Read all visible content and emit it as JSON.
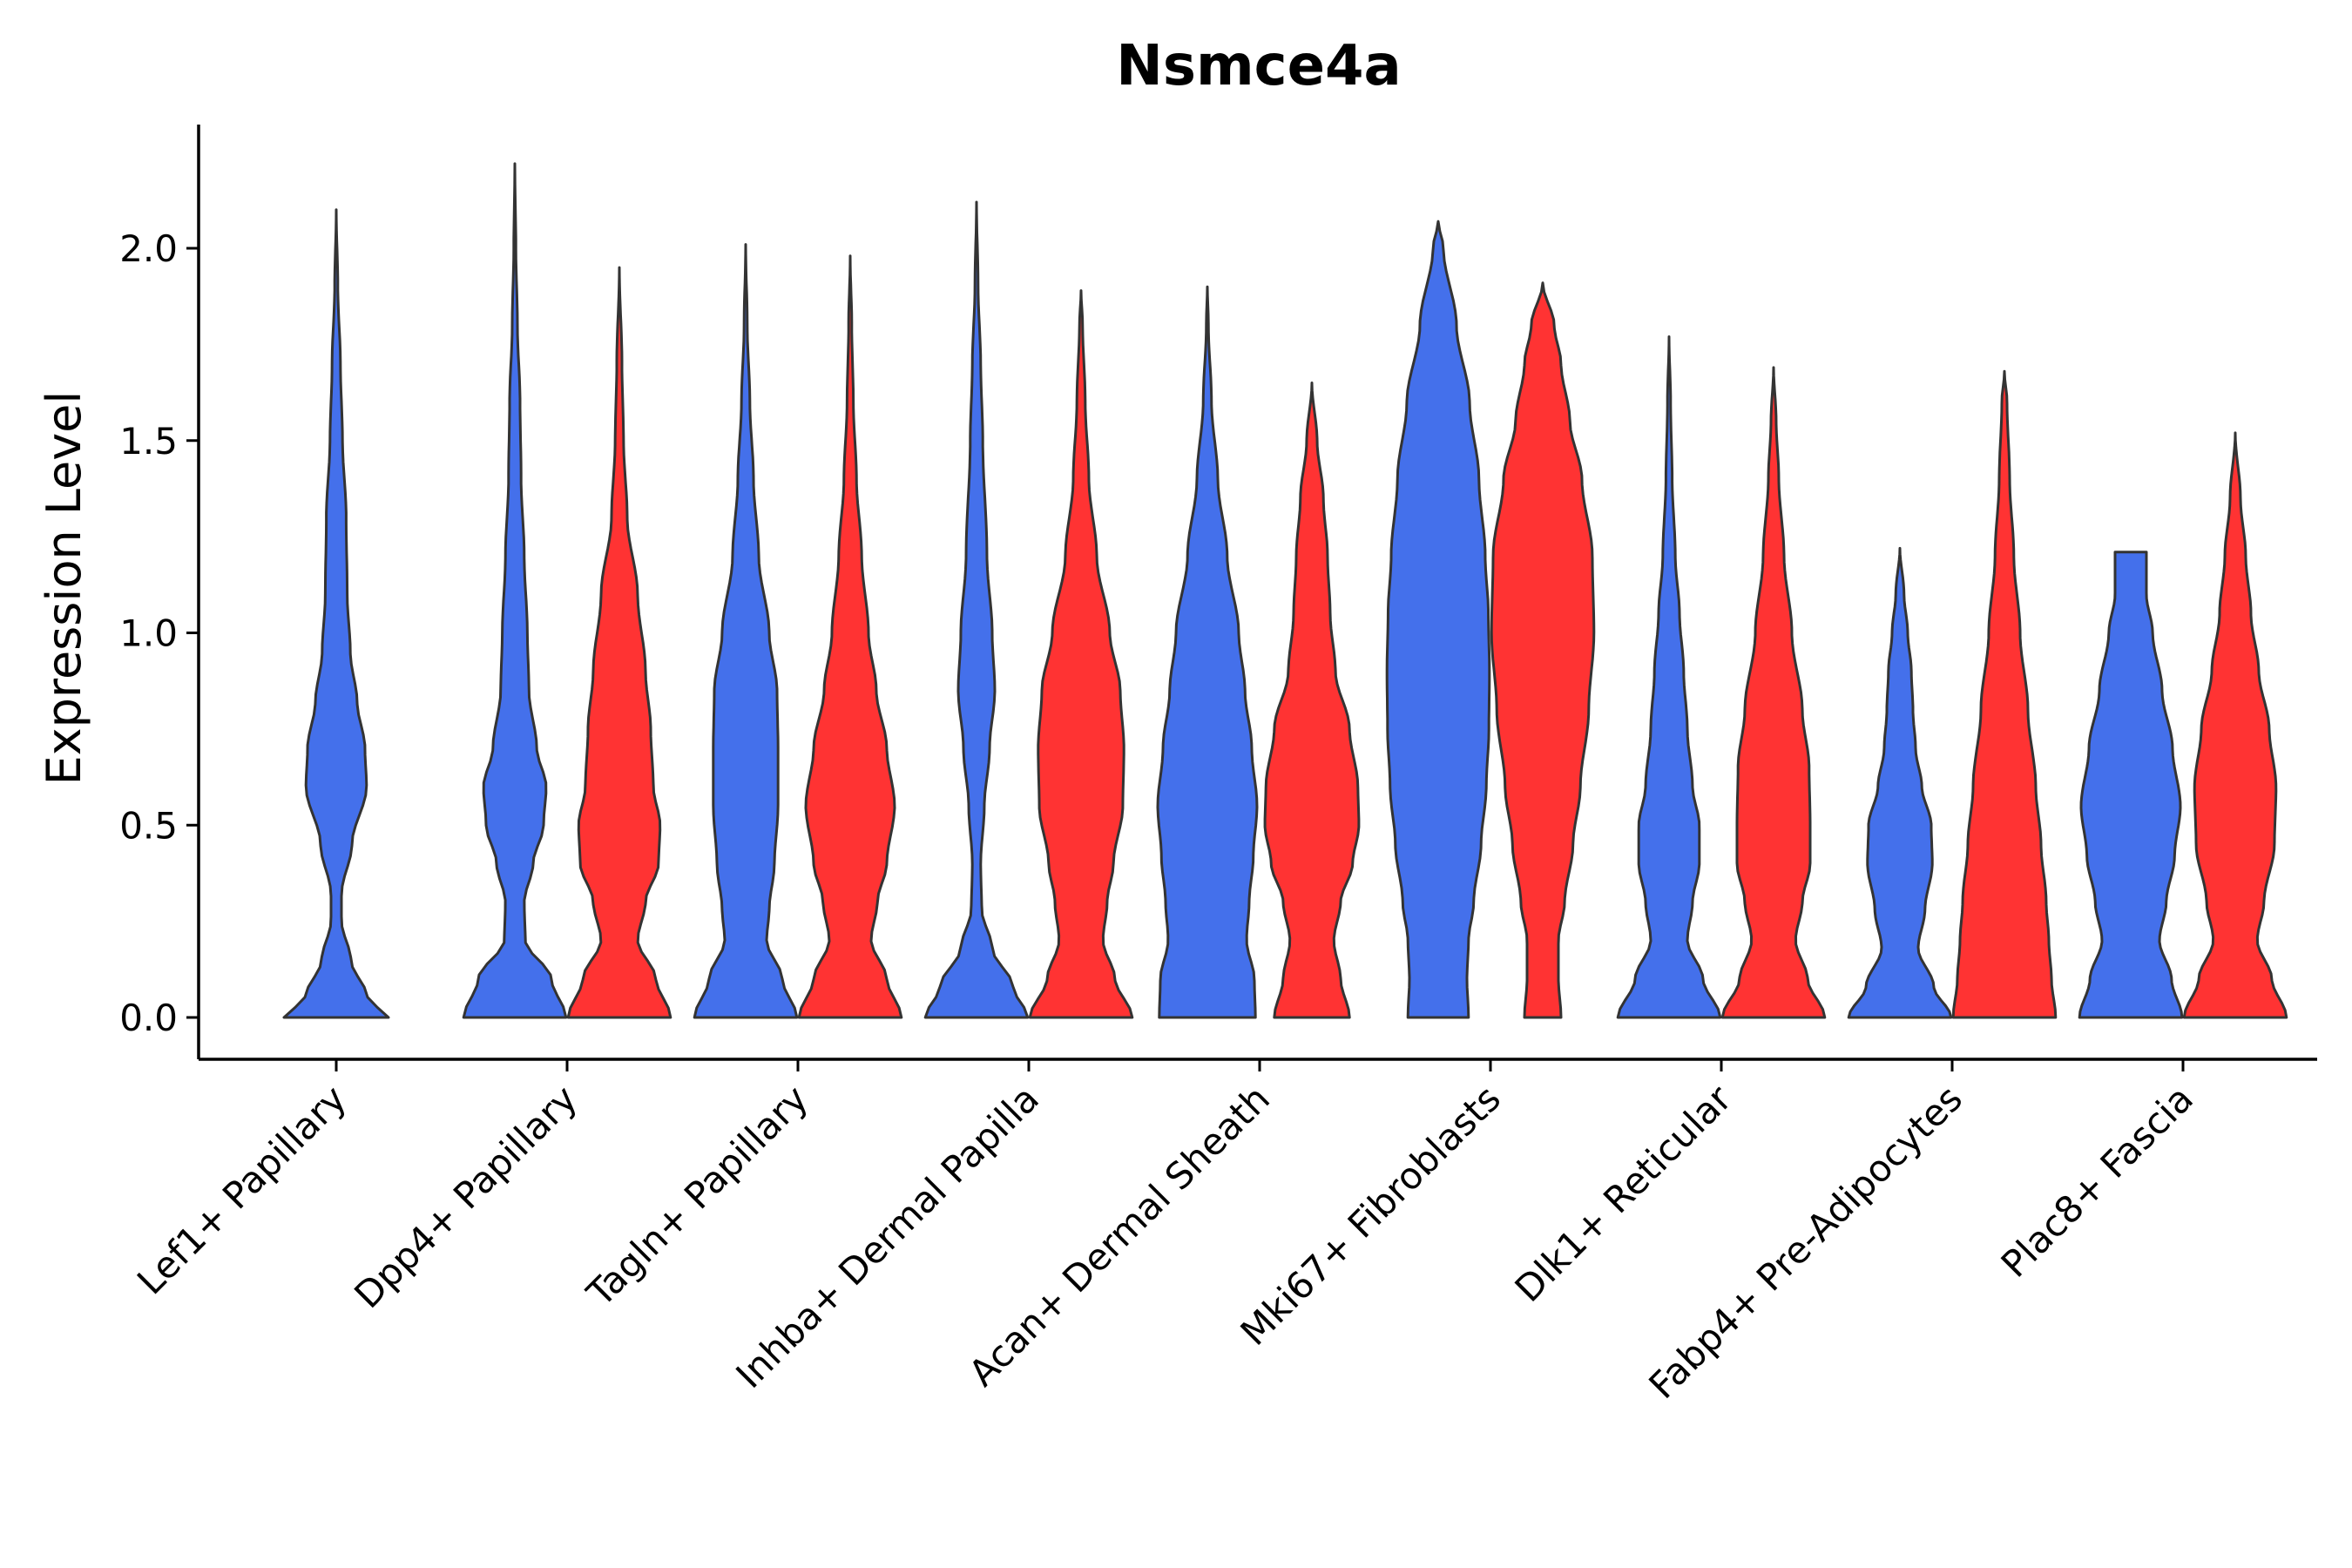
{
  "chart_data": {
    "type": "violin",
    "title": "Nsmce4a",
    "xlabel": "",
    "ylabel": "Expression Level",
    "ylim": [
      -0.11,
      2.33
    ],
    "yticks": [
      0.0,
      0.5,
      1.0,
      1.5,
      2.0
    ],
    "ytick_labels": [
      "0.0",
      "0.5",
      "1.0",
      "1.5",
      "2.0"
    ],
    "categories": [
      "Lef1+ Papillary",
      "Dpp4+ Papillary",
      "Tagln+ Papillary",
      "Inhba+ Dermal Papilla",
      "Acan+ Dermal Sheath",
      "Mki67+ Fibroblasts",
      "Dlk1+ Reticular",
      "Fabp4+ Pre-Adipocytes",
      "Plac8+ Fascia"
    ],
    "series": [
      {
        "name": "group1",
        "color": "#4470EB",
        "violins": [
          {
            "max": 2.1,
            "profile": [
              [
                0.0,
                1.0
              ],
              [
                0.05,
                0.6
              ],
              [
                0.15,
                0.28
              ],
              [
                0.25,
                0.1
              ],
              [
                0.32,
                0.1
              ],
              [
                0.45,
                0.3
              ],
              [
                0.6,
                0.58
              ],
              [
                0.7,
                0.55
              ],
              [
                0.82,
                0.4
              ],
              [
                0.95,
                0.27
              ],
              [
                1.1,
                0.21
              ],
              [
                1.3,
                0.19
              ],
              [
                1.5,
                0.12
              ],
              [
                1.7,
                0.08
              ],
              [
                1.9,
                0.03
              ],
              [
                2.1,
                0.0
              ]
            ]
          },
          {
            "max": 2.22,
            "profile": [
              [
                0.0,
                0.98
              ],
              [
                0.1,
                0.7
              ],
              [
                0.2,
                0.2
              ],
              [
                0.3,
                0.18
              ],
              [
                0.4,
                0.35
              ],
              [
                0.5,
                0.55
              ],
              [
                0.6,
                0.6
              ],
              [
                0.7,
                0.42
              ],
              [
                0.85,
                0.27
              ],
              [
                1.0,
                0.24
              ],
              [
                1.2,
                0.18
              ],
              [
                1.4,
                0.12
              ],
              [
                1.6,
                0.1
              ],
              [
                1.8,
                0.05
              ],
              [
                2.0,
                0.02
              ],
              [
                2.22,
                0.0
              ]
            ]
          },
          {
            "max": 2.01,
            "profile": [
              [
                0.0,
                0.98
              ],
              [
                0.1,
                0.7
              ],
              [
                0.2,
                0.4
              ],
              [
                0.28,
                0.45
              ],
              [
                0.4,
                0.55
              ],
              [
                0.55,
                0.62
              ],
              [
                0.7,
                0.62
              ],
              [
                0.85,
                0.6
              ],
              [
                1.0,
                0.45
              ],
              [
                1.2,
                0.25
              ],
              [
                1.4,
                0.15
              ],
              [
                1.6,
                0.08
              ],
              [
                1.8,
                0.03
              ],
              [
                2.01,
                0.0
              ]
            ]
          },
          {
            "max": 2.12,
            "profile": [
              [
                0.0,
                0.98
              ],
              [
                0.08,
                0.7
              ],
              [
                0.18,
                0.3
              ],
              [
                0.28,
                0.1
              ],
              [
                0.4,
                0.08
              ],
              [
                0.55,
                0.15
              ],
              [
                0.7,
                0.25
              ],
              [
                0.85,
                0.35
              ],
              [
                1.0,
                0.3
              ],
              [
                1.2,
                0.2
              ],
              [
                1.5,
                0.12
              ],
              [
                1.7,
                0.08
              ],
              [
                1.9,
                0.03
              ],
              [
                2.12,
                0.0
              ]
            ]
          },
          {
            "max": 1.9,
            "profile": [
              [
                0.0,
                0.92
              ],
              [
                0.1,
                0.9
              ],
              [
                0.2,
                0.75
              ],
              [
                0.3,
                0.8
              ],
              [
                0.42,
                0.88
              ],
              [
                0.55,
                0.95
              ],
              [
                0.7,
                0.85
              ],
              [
                0.85,
                0.72
              ],
              [
                1.0,
                0.6
              ],
              [
                1.2,
                0.38
              ],
              [
                1.4,
                0.2
              ],
              [
                1.6,
                0.08
              ],
              [
                1.8,
                0.02
              ],
              [
                1.9,
                0.0
              ]
            ]
          },
          {
            "max": 2.07,
            "profile": [
              [
                0.0,
                0.58
              ],
              [
                0.1,
                0.55
              ],
              [
                0.2,
                0.58
              ],
              [
                0.3,
                0.68
              ],
              [
                0.45,
                0.82
              ],
              [
                0.6,
                0.92
              ],
              [
                0.75,
                0.97
              ],
              [
                0.9,
                0.98
              ],
              [
                1.05,
                0.96
              ],
              [
                1.2,
                0.9
              ],
              [
                1.4,
                0.78
              ],
              [
                1.6,
                0.6
              ],
              [
                1.8,
                0.35
              ],
              [
                2.0,
                0.1
              ],
              [
                2.07,
                0.0
              ]
            ]
          },
          {
            "max": 1.77,
            "profile": [
              [
                0.0,
                0.98
              ],
              [
                0.1,
                0.65
              ],
              [
                0.2,
                0.35
              ],
              [
                0.3,
                0.45
              ],
              [
                0.4,
                0.58
              ],
              [
                0.5,
                0.58
              ],
              [
                0.6,
                0.45
              ],
              [
                0.75,
                0.35
              ],
              [
                0.9,
                0.28
              ],
              [
                1.05,
                0.2
              ],
              [
                1.2,
                0.12
              ],
              [
                1.4,
                0.06
              ],
              [
                1.6,
                0.03
              ],
              [
                1.77,
                0.0
              ]
            ]
          },
          {
            "max": 1.22,
            "profile": [
              [
                0.0,
                0.98
              ],
              [
                0.08,
                0.65
              ],
              [
                0.18,
                0.35
              ],
              [
                0.28,
                0.48
              ],
              [
                0.4,
                0.62
              ],
              [
                0.5,
                0.6
              ],
              [
                0.6,
                0.42
              ],
              [
                0.7,
                0.3
              ],
              [
                0.8,
                0.25
              ],
              [
                0.9,
                0.22
              ],
              [
                1.0,
                0.15
              ],
              [
                1.1,
                0.08
              ],
              [
                1.22,
                0.0
              ]
            ]
          },
          {
            "max": 1.21,
            "profile": [
              [
                0.0,
                0.98
              ],
              [
                0.1,
                0.78
              ],
              [
                0.2,
                0.55
              ],
              [
                0.3,
                0.68
              ],
              [
                0.42,
                0.84
              ],
              [
                0.55,
                0.95
              ],
              [
                0.7,
                0.8
              ],
              [
                0.85,
                0.6
              ],
              [
                1.0,
                0.42
              ],
              [
                1.1,
                0.3
              ],
              [
                1.21,
                0.3
              ]
            ]
          }
        ]
      },
      {
        "name": "group2",
        "color": "#FF3333",
        "violins": [
          null,
          {
            "max": 1.95,
            "profile": [
              [
                0.0,
                0.98
              ],
              [
                0.1,
                0.7
              ],
              [
                0.2,
                0.35
              ],
              [
                0.3,
                0.5
              ],
              [
                0.4,
                0.75
              ],
              [
                0.5,
                0.78
              ],
              [
                0.6,
                0.65
              ],
              [
                0.75,
                0.6
              ],
              [
                0.9,
                0.5
              ],
              [
                1.1,
                0.35
              ],
              [
                1.3,
                0.15
              ],
              [
                1.5,
                0.08
              ],
              [
                1.7,
                0.05
              ],
              [
                1.95,
                0.0
              ]
            ]
          },
          {
            "max": 1.98,
            "profile": [
              [
                0.0,
                0.98
              ],
              [
                0.1,
                0.7
              ],
              [
                0.2,
                0.4
              ],
              [
                0.3,
                0.52
              ],
              [
                0.4,
                0.7
              ],
              [
                0.55,
                0.85
              ],
              [
                0.7,
                0.7
              ],
              [
                0.85,
                0.5
              ],
              [
                1.0,
                0.35
              ],
              [
                1.2,
                0.22
              ],
              [
                1.4,
                0.12
              ],
              [
                1.6,
                0.06
              ],
              [
                1.8,
                0.03
              ],
              [
                1.98,
                0.0
              ]
            ]
          },
          {
            "max": 1.89,
            "profile": [
              [
                0.0,
                0.98
              ],
              [
                0.1,
                0.65
              ],
              [
                0.2,
                0.42
              ],
              [
                0.3,
                0.5
              ],
              [
                0.4,
                0.62
              ],
              [
                0.55,
                0.8
              ],
              [
                0.7,
                0.82
              ],
              [
                0.85,
                0.75
              ],
              [
                1.0,
                0.55
              ],
              [
                1.2,
                0.3
              ],
              [
                1.4,
                0.15
              ],
              [
                1.6,
                0.08
              ],
              [
                1.8,
                0.03
              ],
              [
                1.89,
                0.0
              ]
            ]
          },
          {
            "max": 1.65,
            "profile": [
              [
                0.0,
                0.72
              ],
              [
                0.1,
                0.55
              ],
              [
                0.2,
                0.42
              ],
              [
                0.3,
                0.55
              ],
              [
                0.4,
                0.78
              ],
              [
                0.5,
                0.9
              ],
              [
                0.6,
                0.88
              ],
              [
                0.75,
                0.72
              ],
              [
                0.9,
                0.45
              ],
              [
                1.05,
                0.35
              ],
              [
                1.2,
                0.3
              ],
              [
                1.35,
                0.22
              ],
              [
                1.5,
                0.1
              ],
              [
                1.65,
                0.0
              ]
            ]
          },
          {
            "max": 1.91,
            "profile": [
              [
                0.0,
                0.35
              ],
              [
                0.1,
                0.3
              ],
              [
                0.2,
                0.3
              ],
              [
                0.3,
                0.42
              ],
              [
                0.45,
                0.58
              ],
              [
                0.6,
                0.72
              ],
              [
                0.8,
                0.88
              ],
              [
                1.0,
                0.98
              ],
              [
                1.2,
                0.95
              ],
              [
                1.4,
                0.75
              ],
              [
                1.55,
                0.52
              ],
              [
                1.7,
                0.35
              ],
              [
                1.8,
                0.22
              ],
              [
                1.91,
                0.0
              ]
            ]
          },
          {
            "max": 1.69,
            "profile": [
              [
                0.0,
                0.98
              ],
              [
                0.1,
                0.65
              ],
              [
                0.2,
                0.42
              ],
              [
                0.3,
                0.55
              ],
              [
                0.4,
                0.7
              ],
              [
                0.5,
                0.7
              ],
              [
                0.65,
                0.68
              ],
              [
                0.8,
                0.55
              ],
              [
                1.0,
                0.35
              ],
              [
                1.2,
                0.2
              ],
              [
                1.4,
                0.1
              ],
              [
                1.55,
                0.05
              ],
              [
                1.69,
                0.0
              ]
            ]
          },
          {
            "max": 1.68,
            "profile": [
              [
                0.0,
                0.98
              ],
              [
                0.1,
                0.9
              ],
              [
                0.2,
                0.85
              ],
              [
                0.3,
                0.8
              ],
              [
                0.45,
                0.7
              ],
              [
                0.6,
                0.6
              ],
              [
                0.8,
                0.45
              ],
              [
                1.0,
                0.3
              ],
              [
                1.2,
                0.18
              ],
              [
                1.4,
                0.1
              ],
              [
                1.6,
                0.05
              ],
              [
                1.68,
                0.0
              ]
            ]
          },
          {
            "max": 1.52,
            "profile": [
              [
                0.0,
                0.98
              ],
              [
                0.1,
                0.7
              ],
              [
                0.2,
                0.42
              ],
              [
                0.3,
                0.55
              ],
              [
                0.45,
                0.75
              ],
              [
                0.6,
                0.78
              ],
              [
                0.75,
                0.65
              ],
              [
                0.9,
                0.45
              ],
              [
                1.05,
                0.3
              ],
              [
                1.2,
                0.2
              ],
              [
                1.35,
                0.1
              ],
              [
                1.52,
                0.0
              ]
            ]
          }
        ]
      }
    ]
  }
}
